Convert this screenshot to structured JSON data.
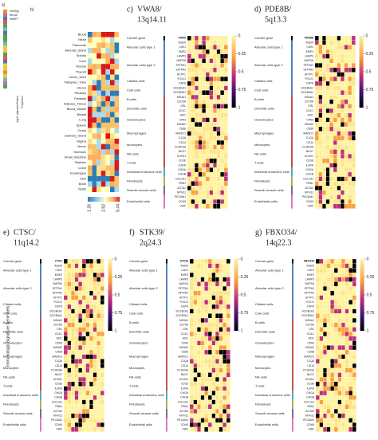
{
  "panel_a": {
    "label": "a)",
    "set_labels": [
      "ImmSig",
      "WCAZ",
      "IMMPT"
    ],
    "legend_labels": [
      "log10 adjusted Pvalue",
      "Proportion"
    ],
    "title": "Immunologic Signature Gene Sets"
  },
  "panel_b": {
    "label": "b)",
    "tissues": [
      "Blood",
      "Heart",
      "Pancreas",
      "Adrenal_Gland",
      "Kidney",
      "Liver",
      "Muscle",
      "Thyroid",
      "Cervix_Uteri",
      "Fallopian_Tube",
      "Uterus",
      "Pituitary",
      "Prostate",
      "Adipose_Tissue",
      "Blood_Vessel",
      "Breast",
      "Lung",
      "Spleen",
      "Ovary",
      "Salivary_Gland",
      "Vagina",
      "Nerve",
      "Stomach",
      "Small_Intestine",
      "Bladder",
      "Colon",
      "Esophagus",
      "Skin",
      "Brain",
      "Testis"
    ],
    "colorbar_ticks": [
      1.26,
      2.82,
      5.44
    ]
  },
  "cell_types": [
    {
      "name": "Alveolar cells type 1",
      "genes": [
        "AGER",
        "CAV1",
        "EMP2"
      ]
    },
    {
      "name": "Alveolar cells type 2",
      "genes": [
        "LAMP3",
        "NAPSA",
        "SFTPA1",
        "SFTPA2",
        "SFTPC"
      ]
    },
    {
      "name": "Ciliated cells",
      "genes": [
        "FOXJ1",
        "CAPS"
      ]
    },
    {
      "name": "Club cells",
      "genes": [
        "SCGB1A1",
        "SCGB3A1"
      ]
    },
    {
      "name": "B-cells",
      "genes": [
        "MS4A1",
        "CD79A"
      ]
    },
    {
      "name": "Dendritic cells",
      "genes": [
        "CRL",
        "CD1C"
      ]
    },
    {
      "name": "Granulocytes",
      "genes": [
        "HDC",
        "CPA3",
        "MS4A2"
      ]
    },
    {
      "name": "Macrophages",
      "genes": [
        "CD68",
        "MARCO",
        "C1QA"
      ]
    },
    {
      "name": "Monocytes",
      "genes": [
        "CD14",
        "FCGR3A"
      ]
    },
    {
      "name": "NK-cells",
      "genes": [
        "NKG7",
        "KLRD1"
      ]
    },
    {
      "name": "T-cells",
      "genes": [
        "CD3E",
        "IL2RA"
      ]
    },
    {
      "name": "Intestinal endocrine cells",
      "genes": [
        "CHGA",
        "CHGB"
      ]
    },
    {
      "name": "Fibroblasts",
      "genes": [
        "COL1A1",
        "FBN1"
      ]
    },
    {
      "name": "Smooth muscle cells",
      "genes": [
        "ACTA2",
        "MYH11"
      ]
    },
    {
      "name": "Endothelial cells",
      "genes": [
        "PECAM1",
        "CDH5",
        "VWF"
      ]
    }
  ],
  "current_gene_label": "Current gene",
  "heat_ticks": [
    0,
    0.25,
    0.5,
    0.75,
    1
  ],
  "panels": [
    {
      "label": "c)",
      "line1": "VWA8/",
      "line2": "13q14.11",
      "gene": "VWA8"
    },
    {
      "label": "d)",
      "line1": "PDE8B/",
      "line2": "5q13.3",
      "gene": "PDE8B"
    },
    {
      "label": "e)",
      "line1": "CTSC/",
      "line2": "11q14.2",
      "gene": "CTSC"
    },
    {
      "label": "f)",
      "line1": "STK39/",
      "line2": "2q24.3",
      "gene": "STK39"
    },
    {
      "label": "g)",
      "line1": "FBXO34/",
      "line2": "14q22.3",
      "gene": "FBXO34"
    }
  ]
}
